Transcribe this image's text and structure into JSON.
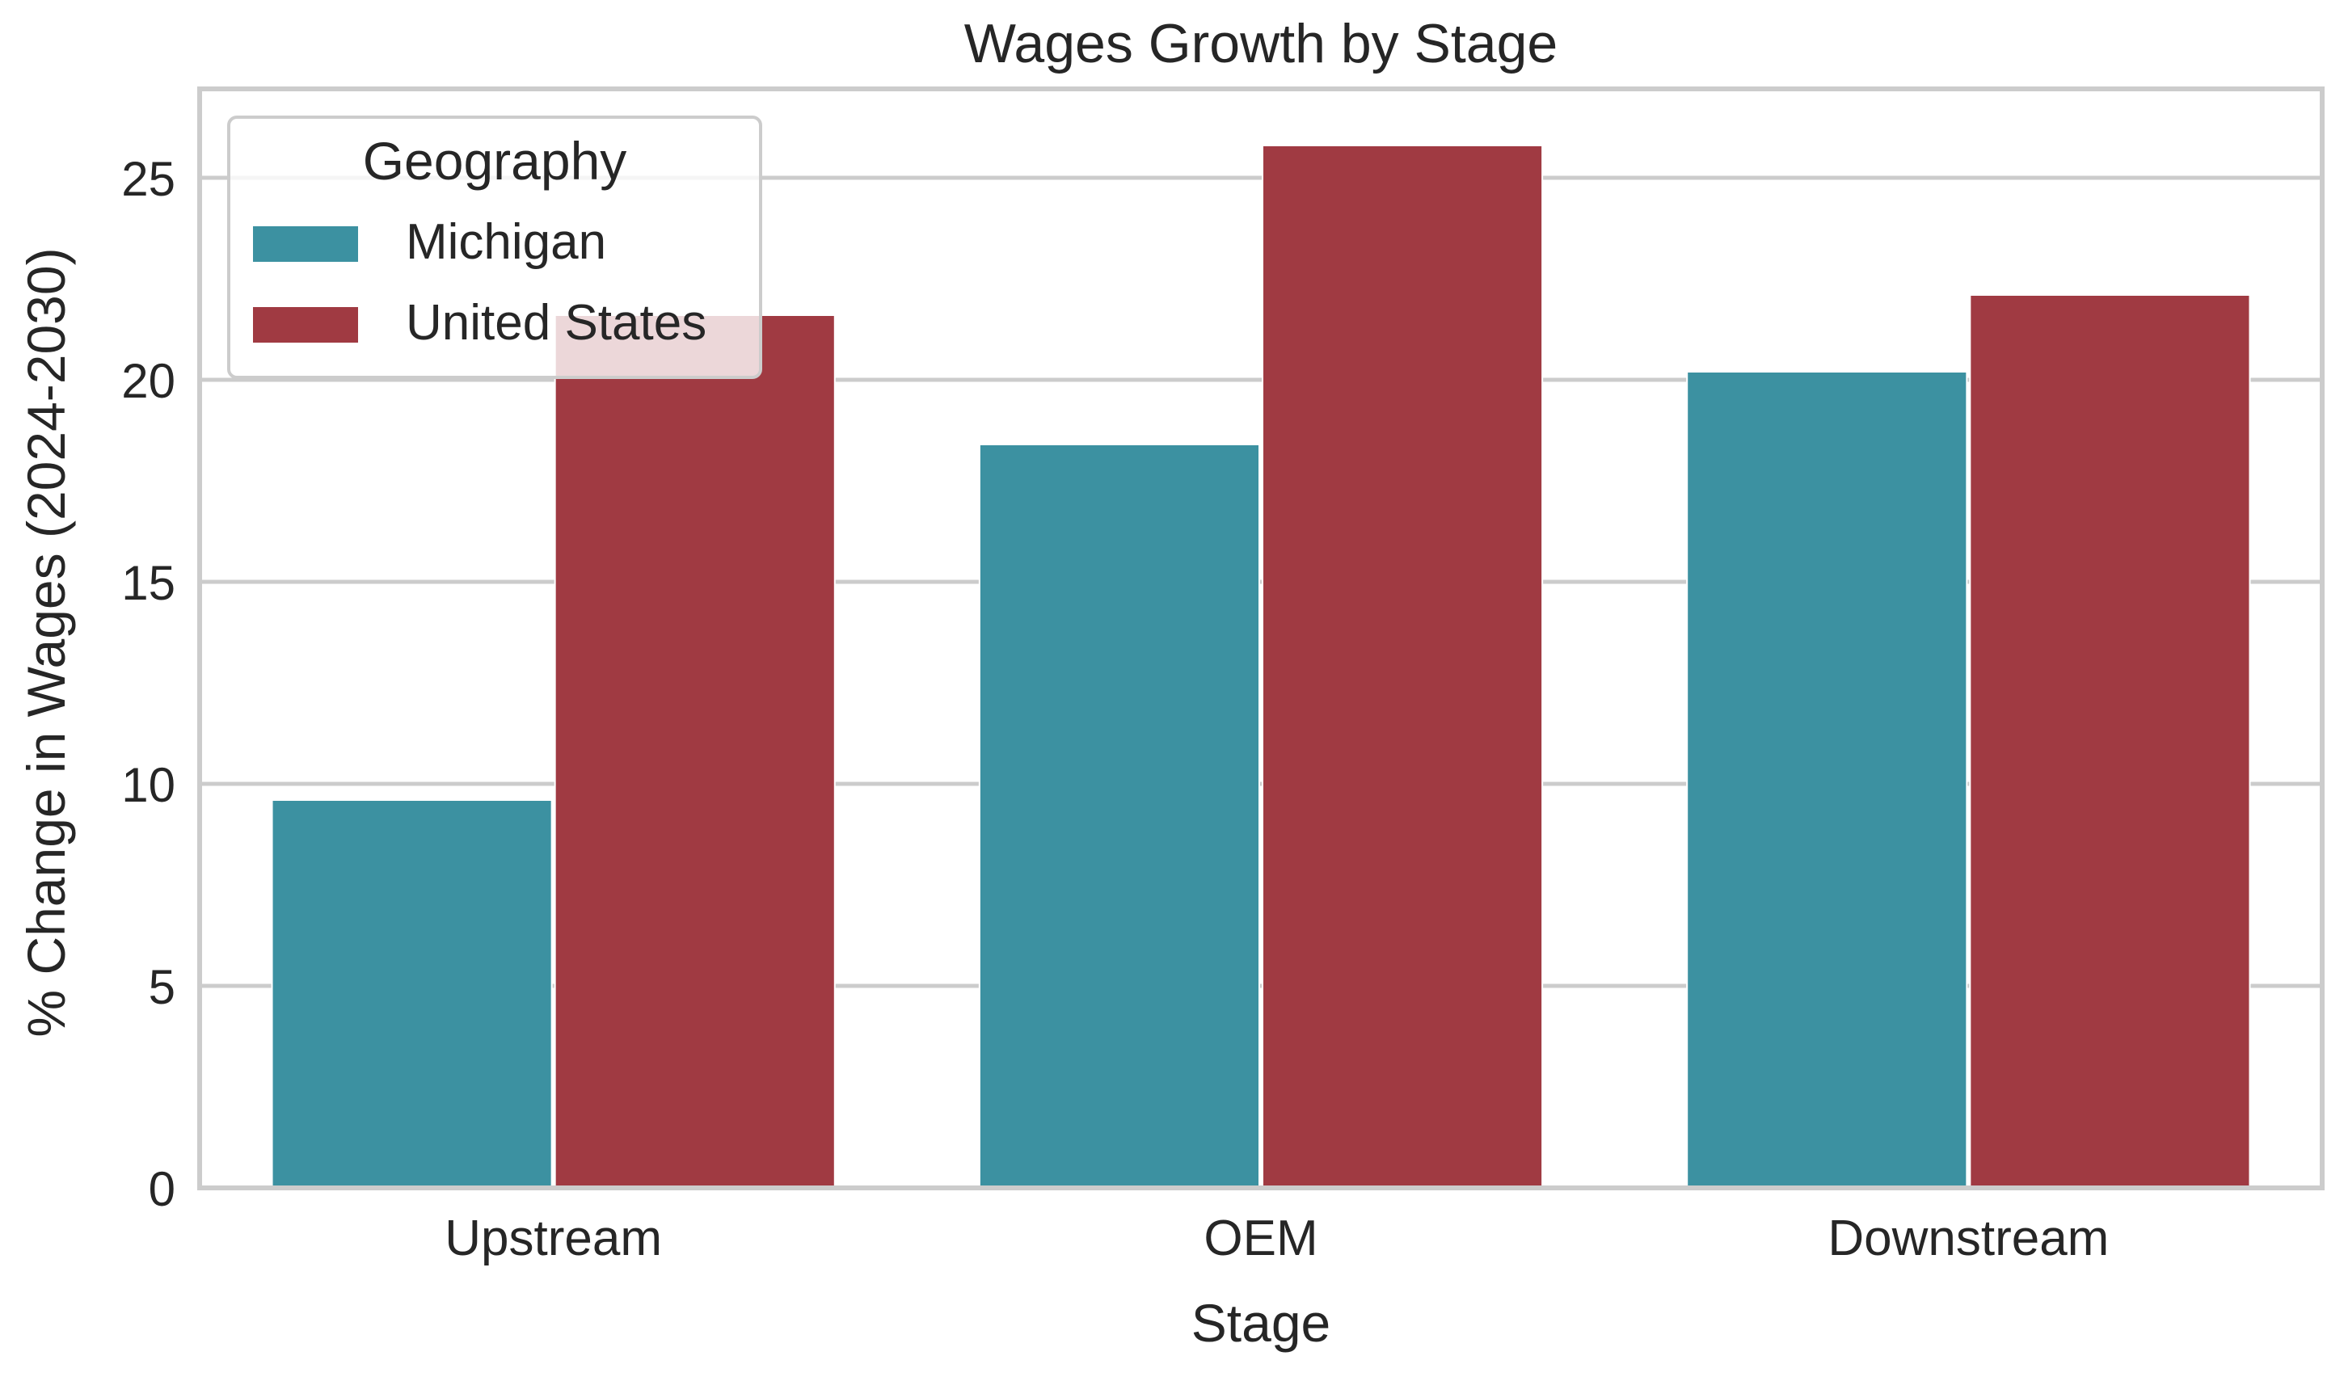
{
  "chart_data": {
    "type": "bar",
    "title": "Wages Growth by Stage",
    "xlabel": "Stage",
    "ylabel": "% Change in Wages (2024-2030)",
    "categories": [
      "Upstream",
      "OEM",
      "Downstream"
    ],
    "series": [
      {
        "name": "Michigan",
        "color": "#3c91a1",
        "values": [
          9.6,
          18.4,
          20.2
        ]
      },
      {
        "name": "United States",
        "color": "#a03a42",
        "values": [
          21.6,
          25.8,
          22.1
        ]
      }
    ],
    "ylim": [
      0,
      27.2
    ],
    "yticks": [
      0,
      5,
      10,
      15,
      20,
      25
    ],
    "grid": true,
    "legend": {
      "title": "Geography",
      "position": "top-left"
    }
  }
}
